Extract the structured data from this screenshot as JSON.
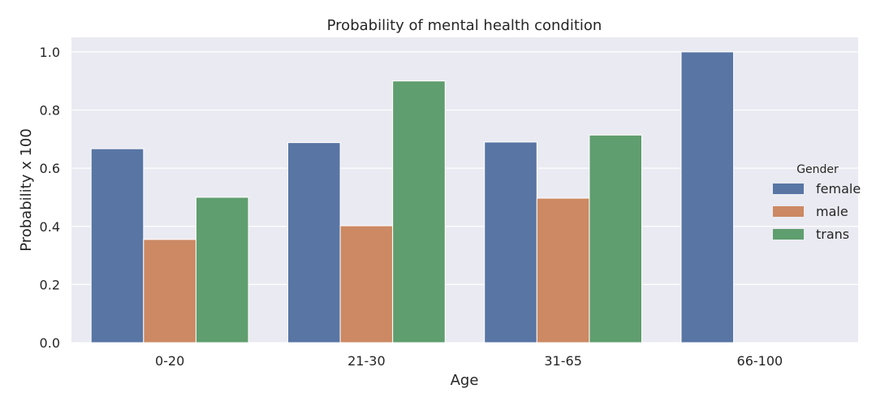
{
  "chart_data": {
    "type": "bar",
    "title": "Probability of mental health condition",
    "xlabel": "Age",
    "ylabel": "Probability x 100",
    "categories": [
      "0-20",
      "21-30",
      "31-65",
      "66-100"
    ],
    "series": [
      {
        "name": "female",
        "values": [
          0.667,
          0.688,
          0.69,
          1.0
        ],
        "color": "#5875a4"
      },
      {
        "name": "male",
        "values": [
          0.355,
          0.402,
          0.497,
          0
        ],
        "color": "#cc8963"
      },
      {
        "name": "trans",
        "values": [
          0.5,
          0.9,
          0.714,
          0
        ],
        "color": "#5f9e6e"
      }
    ],
    "ylim": [
      0,
      1.05
    ],
    "yticks": [
      0.0,
      0.2,
      0.4,
      0.6,
      0.8,
      1.0
    ],
    "ytick_labels": [
      "0.0",
      "0.2",
      "0.4",
      "0.6",
      "0.8",
      "1.0"
    ],
    "grid": true,
    "legend": {
      "title": "Gender",
      "placement": "right"
    },
    "plot_background": "#eaeaf2"
  }
}
